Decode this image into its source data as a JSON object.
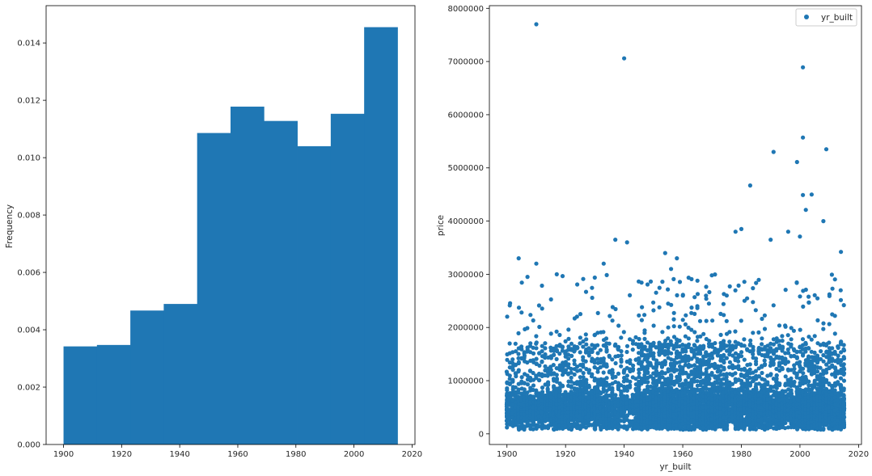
{
  "chart_data": [
    {
      "type": "bar",
      "subtype": "histogram",
      "ylabel": "Frequency",
      "xlabel": "",
      "xlim": [
        1894,
        2021
      ],
      "ylim": [
        0,
        0.0153
      ],
      "xticks": [
        1900,
        1920,
        1940,
        1960,
        1980,
        2000,
        2020
      ],
      "yticks": [
        0.0,
        0.002,
        0.004,
        0.006,
        0.008,
        0.01,
        0.012,
        0.014
      ],
      "ytick_labels": [
        "0.000",
        "0.002",
        "0.004",
        "0.006",
        "0.008",
        "0.010",
        "0.012",
        "0.014"
      ],
      "bin_edges": [
        1900,
        1911.5,
        1923,
        1934.5,
        1946,
        1957.5,
        1969,
        1980.5,
        1992,
        2003.5,
        2015
      ],
      "values": [
        0.00342,
        0.00347,
        0.00467,
        0.0049,
        0.01086,
        0.01178,
        0.01128,
        0.0104,
        0.01153,
        0.01455
      ],
      "color": "#1f77b4",
      "grid": false
    },
    {
      "type": "scatter",
      "xlabel": "yr_built",
      "ylabel": "price",
      "xlim": [
        1894,
        2021
      ],
      "ylim": [
        -200000,
        8050000
      ],
      "xticks": [
        1900,
        1920,
        1940,
        1960,
        1980,
        2000,
        2020
      ],
      "yticks": [
        0,
        1000000,
        2000000,
        3000000,
        4000000,
        5000000,
        6000000,
        7000000,
        8000000
      ],
      "ytick_labels": [
        "0",
        "1000000",
        "2000000",
        "3000000",
        "4000000",
        "5000000",
        "6000000",
        "7000000",
        "8000000"
      ],
      "color": "#1f77b4",
      "legend": {
        "position": "top-right",
        "entries": [
          "yr_built"
        ]
      },
      "grid": false,
      "notable_points": [
        {
          "x": 1910,
          "y": 7700000
        },
        {
          "x": 1940,
          "y": 7060000
        },
        {
          "x": 2001,
          "y": 6890000
        },
        {
          "x": 2001,
          "y": 5570000
        },
        {
          "x": 2009,
          "y": 5350000
        },
        {
          "x": 1991,
          "y": 5300000
        },
        {
          "x": 1999,
          "y": 5110000
        },
        {
          "x": 1983,
          "y": 4670000
        },
        {
          "x": 2001,
          "y": 4490000
        },
        {
          "x": 2004,
          "y": 4500000
        },
        {
          "x": 2002,
          "y": 4210000
        },
        {
          "x": 2008,
          "y": 4000000
        },
        {
          "x": 1980,
          "y": 3850000
        },
        {
          "x": 1978,
          "y": 3800000
        },
        {
          "x": 1996,
          "y": 3800000
        },
        {
          "x": 2000,
          "y": 3710000
        },
        {
          "x": 1937,
          "y": 3650000
        },
        {
          "x": 1990,
          "y": 3650000
        },
        {
          "x": 1941,
          "y": 3600000
        },
        {
          "x": 1904,
          "y": 3300000
        },
        {
          "x": 1954,
          "y": 3400000
        },
        {
          "x": 1958,
          "y": 3300000
        },
        {
          "x": 1910,
          "y": 3200000
        },
        {
          "x": 1933,
          "y": 3200000
        },
        {
          "x": 1956,
          "y": 3100000
        },
        {
          "x": 1917,
          "y": 3000000
        },
        {
          "x": 2014,
          "y": 3420000
        },
        {
          "x": 1965,
          "y": 2880000
        },
        {
          "x": 1975,
          "y": 2600000
        }
      ],
      "distribution_note": "dense band of points for every year 1900-2015, concentrated between ~80000 and ~1000000"
    }
  ]
}
